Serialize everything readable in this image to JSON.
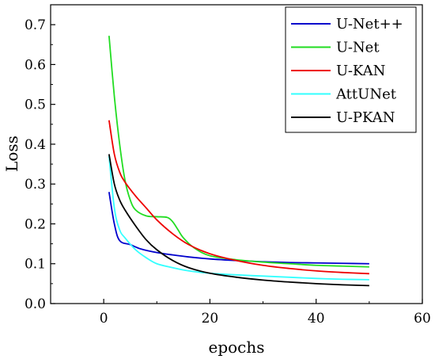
{
  "chart_data": {
    "type": "line",
    "title": "",
    "xlabel": "epochs",
    "ylabel": "Loss",
    "xlim": [
      -10,
      60
    ],
    "ylim": [
      0.0,
      0.75
    ],
    "xticks": [
      0,
      20,
      40,
      60
    ],
    "yticks": [
      0.0,
      0.1,
      0.2,
      0.3,
      0.4,
      0.5,
      0.6,
      0.7
    ],
    "xtick_labels": [
      "0",
      "20",
      "40",
      "60"
    ],
    "ytick_labels": [
      "0.0",
      "0.1",
      "0.2",
      "0.3",
      "0.4",
      "0.5",
      "0.6",
      "0.7"
    ],
    "grid": false,
    "legend_position": "top-right",
    "series": [
      {
        "name": "U-Net++",
        "color": "#0000cc",
        "x": [
          1,
          2,
          3,
          5,
          7,
          10,
          13,
          16,
          20,
          25,
          30,
          35,
          40,
          45,
          50
        ],
        "y": [
          0.28,
          0.2,
          0.158,
          0.148,
          0.137,
          0.128,
          0.122,
          0.117,
          0.112,
          0.108,
          0.105,
          0.103,
          0.102,
          0.101,
          0.1
        ]
      },
      {
        "name": "U-Net",
        "color": "#22dd22",
        "x": [
          1,
          2,
          3,
          4,
          5,
          6,
          8,
          10,
          12,
          13,
          14,
          15,
          17,
          20,
          25,
          30,
          35,
          40,
          45,
          50
        ],
        "y": [
          0.672,
          0.52,
          0.4,
          0.31,
          0.26,
          0.235,
          0.22,
          0.218,
          0.216,
          0.205,
          0.185,
          0.165,
          0.14,
          0.12,
          0.11,
          0.104,
          0.1,
          0.096,
          0.094,
          0.092
        ]
      },
      {
        "name": "U-KAN",
        "color": "#ee0000",
        "x": [
          1,
          2,
          3,
          4,
          6,
          8,
          10,
          13,
          16,
          20,
          25,
          30,
          35,
          40,
          45,
          50
        ],
        "y": [
          0.46,
          0.375,
          0.33,
          0.305,
          0.27,
          0.24,
          0.21,
          0.175,
          0.148,
          0.125,
          0.108,
          0.096,
          0.088,
          0.082,
          0.078,
          0.075
        ]
      },
      {
        "name": "AttUNet",
        "color": "#33ffff",
        "x": [
          1,
          2,
          3,
          4,
          6,
          8,
          10,
          13,
          16,
          20,
          25,
          30,
          35,
          40,
          45,
          50
        ],
        "y": [
          0.37,
          0.24,
          0.185,
          0.165,
          0.135,
          0.115,
          0.1,
          0.09,
          0.082,
          0.076,
          0.072,
          0.069,
          0.066,
          0.063,
          0.061,
          0.06
        ]
      },
      {
        "name": "U-PKAN",
        "color": "#000000",
        "x": [
          1,
          2,
          3,
          4,
          6,
          8,
          10,
          13,
          16,
          20,
          25,
          30,
          35,
          40,
          45,
          50
        ],
        "y": [
          0.375,
          0.3,
          0.26,
          0.235,
          0.195,
          0.16,
          0.135,
          0.108,
          0.09,
          0.076,
          0.066,
          0.059,
          0.054,
          0.05,
          0.047,
          0.045
        ]
      }
    ]
  }
}
